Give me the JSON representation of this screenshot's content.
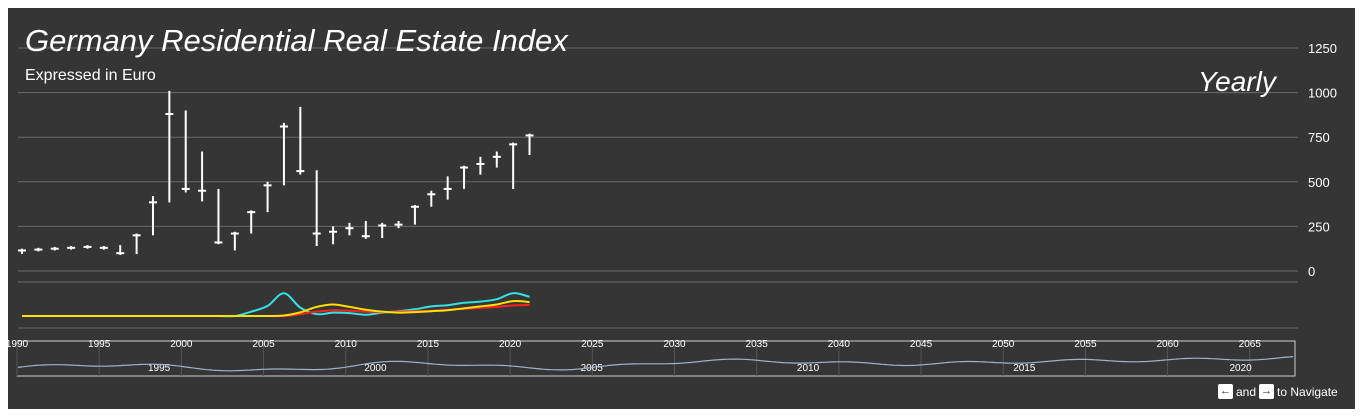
{
  "chart_data": {
    "type": "hlc",
    "title": "Germany Residential Real Estate Index",
    "subtitle": "Expressed in Euro",
    "period": "Yearly",
    "y_axis": {
      "ticks": [
        0,
        250,
        500,
        750,
        1000,
        1250
      ],
      "ylim": [
        0,
        1250
      ],
      "position": "right"
    },
    "x_axis_main": {
      "xlim": [
        1990,
        2068
      ]
    },
    "grid": true,
    "series": [
      {
        "name": "",
        "color": "#ffffff",
        "data": [
          {
            "x": 1990,
            "high": 125,
            "low": 95,
            "close": 115
          },
          {
            "x": 1991,
            "high": 130,
            "low": 110,
            "close": 120
          },
          {
            "x": 1992,
            "high": 135,
            "low": 115,
            "close": 125
          },
          {
            "x": 1993,
            "high": 140,
            "low": 120,
            "close": 130
          },
          {
            "x": 1994,
            "high": 145,
            "low": 125,
            "close": 135
          },
          {
            "x": 1995,
            "high": 140,
            "low": 120,
            "close": 130
          },
          {
            "x": 1996,
            "high": 145,
            "low": 90,
            "close": 100
          },
          {
            "x": 1997,
            "high": 210,
            "low": 95,
            "close": 200
          },
          {
            "x": 1998,
            "high": 420,
            "low": 200,
            "close": 385
          },
          {
            "x": 1999,
            "high": 1010,
            "low": 385,
            "close": 880
          },
          {
            "x": 2000,
            "high": 900,
            "low": 440,
            "close": 460
          },
          {
            "x": 2001,
            "high": 670,
            "low": 390,
            "close": 450
          },
          {
            "x": 2002,
            "high": 460,
            "low": 150,
            "close": 160
          },
          {
            "x": 2003,
            "high": 220,
            "low": 115,
            "close": 210
          },
          {
            "x": 2004,
            "high": 340,
            "low": 210,
            "close": 330
          },
          {
            "x": 2005,
            "high": 500,
            "low": 330,
            "close": 480
          },
          {
            "x": 2006,
            "high": 830,
            "low": 480,
            "close": 810
          },
          {
            "x": 2007,
            "high": 920,
            "low": 540,
            "close": 560
          },
          {
            "x": 2008,
            "high": 565,
            "low": 140,
            "close": 210
          },
          {
            "x": 2009,
            "high": 250,
            "low": 150,
            "close": 220
          },
          {
            "x": 2010,
            "high": 270,
            "low": 200,
            "close": 240
          },
          {
            "x": 2011,
            "high": 280,
            "low": 180,
            "close": 195
          },
          {
            "x": 2012,
            "high": 270,
            "low": 185,
            "close": 255
          },
          {
            "x": 2013,
            "high": 280,
            "low": 240,
            "close": 260
          },
          {
            "x": 2014,
            "high": 370,
            "low": 260,
            "close": 360
          },
          {
            "x": 2015,
            "high": 450,
            "low": 360,
            "close": 430
          },
          {
            "x": 2016,
            "high": 530,
            "low": 400,
            "close": 460
          },
          {
            "x": 2017,
            "high": 590,
            "low": 460,
            "close": 580
          },
          {
            "x": 2018,
            "high": 640,
            "low": 540,
            "close": 600
          },
          {
            "x": 2019,
            "high": 670,
            "low": 580,
            "close": 640
          },
          {
            "x": 2020,
            "high": 720,
            "low": 460,
            "close": 710
          },
          {
            "x": 2021,
            "high": 770,
            "low": 650,
            "close": 760
          }
        ]
      }
    ],
    "indicator_panel": {
      "x": [
        1990,
        1991,
        1992,
        1993,
        1994,
        1995,
        1996,
        1997,
        1998,
        1999,
        2000,
        2001,
        2002,
        2003,
        2004,
        2005,
        2006,
        2007,
        2008,
        2009,
        2010,
        2011,
        2012,
        2013,
        2014,
        2015,
        2016,
        2017,
        2018,
        2019,
        2020,
        2021
      ],
      "series": [
        {
          "color": "#33e3e3",
          "values": [
            0,
            0,
            0,
            0,
            0,
            0,
            0,
            0,
            0,
            0,
            0,
            0,
            0,
            0,
            0.18,
            0.42,
            0.95,
            0.35,
            0.08,
            0.14,
            0.12,
            0.05,
            0.14,
            0.2,
            0.28,
            0.4,
            0.45,
            0.55,
            0.6,
            0.7,
            0.95,
            0.8
          ]
        },
        {
          "color": "#ff2020",
          "values": [
            0,
            0,
            0,
            0,
            0,
            0,
            0,
            0,
            0,
            0,
            0,
            0,
            0,
            0,
            0,
            0,
            0,
            0.08,
            0.18,
            0.24,
            0.22,
            0.18,
            0.16,
            0.18,
            0.2,
            0.22,
            0.26,
            0.3,
            0.34,
            0.38,
            0.44,
            0.46
          ]
        },
        {
          "color": "#ffe000",
          "values": [
            0,
            0,
            0,
            0,
            0,
            0,
            0,
            0,
            0,
            0,
            0,
            0,
            0,
            0,
            0,
            0,
            0.02,
            0.15,
            0.38,
            0.48,
            0.38,
            0.26,
            0.18,
            0.14,
            0.16,
            0.2,
            0.24,
            0.32,
            0.4,
            0.48,
            0.62,
            0.58
          ]
        }
      ]
    },
    "navigator": {
      "x_ticks": [
        "1990",
        "1995",
        "2000",
        "2005",
        "2010",
        "2015",
        "2020",
        "2025",
        "2030",
        "2035",
        "2040",
        "2045",
        "2050",
        "2055",
        "2060",
        "2065"
      ],
      "x_ticks_inner": [
        "1995",
        "2000",
        "2005",
        "2010",
        "2015",
        "2020"
      ],
      "line_color": "#9fb3c8"
    }
  },
  "navigation_hint": {
    "left_key": "←",
    "conjunction": "and",
    "right_key": "→",
    "suffix": "to Navigate"
  }
}
